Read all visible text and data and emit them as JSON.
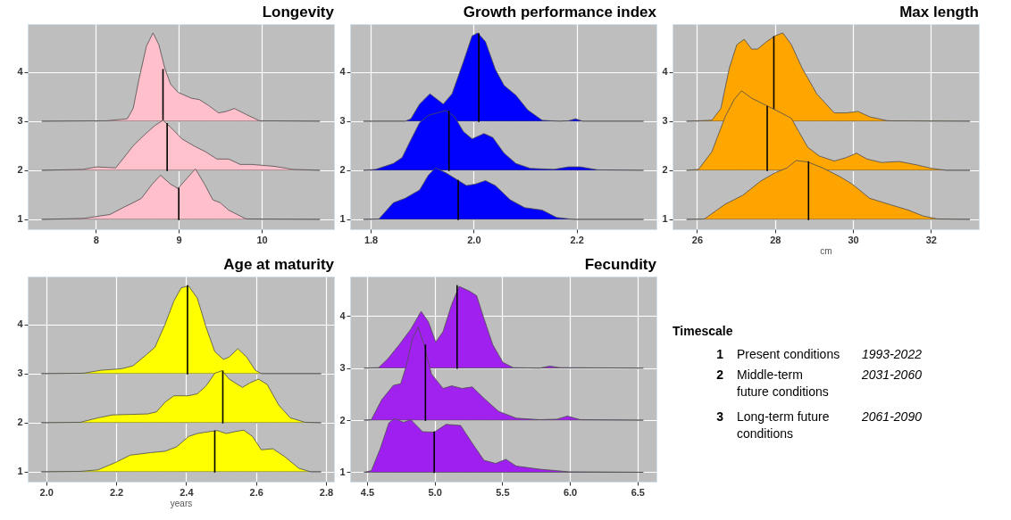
{
  "chart_data": [
    {
      "type": "area",
      "title": "Longevity",
      "xlim": [
        7.18,
        10.87
      ],
      "xticks": [
        8,
        9,
        10
      ],
      "ylim": [
        0.8,
        4.98
      ],
      "yticks": [
        1,
        2,
        3,
        4
      ],
      "grid": true,
      "series": [
        {
          "color": "#ffc0cb",
          "x": [
            7.35,
            8.13,
            8.38,
            8.45,
            8.52,
            8.61,
            8.69,
            8.76,
            8.83,
            8.9,
            8.99,
            9.15,
            9.25,
            9.36,
            9.48,
            9.57,
            9.67,
            9.81,
            9.97,
            10.7
          ],
          "values": [
            3,
            3.01,
            3.05,
            3.26,
            3.85,
            4.53,
            4.8,
            4.56,
            4.09,
            3.76,
            3.59,
            3.47,
            3.44,
            3.32,
            3.17,
            3.2,
            3.26,
            3.14,
            3.01,
            3
          ]
        },
        {
          "type": "line",
          "color": "#000000",
          "x": [
            8.81,
            8.81
          ],
          "values": [
            3.02,
            4.05
          ]
        },
        {
          "color": "#ffc1cb",
          "x": [
            7.35,
            7.85,
            8.01,
            8.24,
            8.34,
            8.45,
            8.59,
            8.71,
            8.81,
            8.9,
            9.04,
            9.18,
            9.32,
            9.46,
            9.6,
            9.74,
            9.88,
            10.16,
            10.37,
            10.7
          ],
          "values": [
            2,
            2.02,
            2.07,
            2.05,
            2.26,
            2.5,
            2.73,
            2.91,
            3.02,
            2.88,
            2.64,
            2.5,
            2.38,
            2.23,
            2.23,
            2.12,
            2.12,
            2.08,
            2.02,
            2
          ]
        },
        {
          "type": "line",
          "color": "#000000",
          "x": [
            8.86,
            8.86
          ],
          "values": [
            2,
            2.95
          ]
        },
        {
          "color": "#ffbfcb",
          "x": [
            7.35,
            7.85,
            8.17,
            8.34,
            8.45,
            8.55,
            8.68,
            8.78,
            8.9,
            8.99,
            9.1,
            9.2,
            9.31,
            9.41,
            9.5,
            9.6,
            9.81,
            10.7
          ],
          "values": [
            1,
            1.02,
            1.1,
            1.25,
            1.34,
            1.43,
            1.72,
            1.9,
            1.72,
            1.63,
            1.84,
            2.03,
            1.72,
            1.4,
            1.34,
            1.19,
            1.01,
            1
          ]
        },
        {
          "type": "line",
          "color": "#000000",
          "x": [
            9.0,
            9.0
          ],
          "values": [
            1,
            1.63
          ]
        }
      ]
    },
    {
      "type": "area",
      "title": "Growth performance index",
      "xlim": [
        1.76,
        2.355
      ],
      "xticks": [
        {
          "value": 1.8,
          "label": "1.8"
        },
        {
          "value": 2.0,
          "label": "2.0"
        },
        {
          "value": 2.2,
          "label": "2.2"
        }
      ],
      "ylim": [
        0.8,
        4.98
      ],
      "yticks": [
        1,
        2,
        3,
        4
      ],
      "grid": true,
      "series": [
        {
          "color": "#0000ff",
          "x": [
            1.786,
            1.867,
            1.878,
            1.895,
            1.915,
            1.926,
            1.941,
            1.958,
            1.98,
            1.997,
            2.008,
            2.023,
            2.042,
            2.059,
            2.082,
            2.105,
            2.133,
            2.167,
            2.184,
            2.198,
            2.212,
            2.33
          ],
          "values": [
            3,
            3,
            3.05,
            3.35,
            3.56,
            3.47,
            3.35,
            3.56,
            4.21,
            4.74,
            4.8,
            4.62,
            4.06,
            3.73,
            3.53,
            3.23,
            3.02,
            3,
            3.01,
            3.05,
            3,
            3
          ]
        },
        {
          "type": "line",
          "color": "#000000",
          "x": [
            2.01,
            2.01
          ],
          "values": [
            3,
            4.78
          ]
        },
        {
          "color": "#0101fe",
          "x": [
            1.786,
            1.81,
            1.844,
            1.861,
            1.878,
            1.895,
            1.912,
            1.946,
            1.963,
            1.98,
            1.997,
            2.02,
            2.037,
            2.059,
            2.082,
            2.11,
            2.156,
            2.184,
            2.207,
            2.241,
            2.33
          ],
          "values": [
            2,
            2.02,
            2.14,
            2.26,
            2.62,
            2.97,
            3.12,
            3.22,
            3.09,
            2.79,
            2.64,
            2.75,
            2.67,
            2.35,
            2.14,
            2.04,
            2.02,
            2.07,
            2.07,
            2.01,
            2
          ]
        },
        {
          "type": "line",
          "color": "#000000",
          "x": [
            1.952,
            1.952
          ],
          "values": [
            2,
            3.2
          ]
        },
        {
          "color": "#0000fd",
          "x": [
            1.786,
            1.816,
            1.844,
            1.867,
            1.895,
            1.912,
            1.926,
            1.946,
            1.963,
            1.986,
            2.003,
            2.023,
            2.042,
            2.071,
            2.099,
            2.133,
            2.161,
            2.195,
            2.33
          ],
          "values": [
            1,
            1.01,
            1.34,
            1.43,
            1.6,
            1.9,
            2.05,
            1.95,
            1.84,
            1.69,
            1.72,
            1.79,
            1.69,
            1.4,
            1.24,
            1.19,
            1.04,
            1,
            1
          ]
        },
        {
          "type": "line",
          "color": "#000000",
          "x": [
            1.97,
            1.97
          ],
          "values": [
            1,
            1.79
          ]
        }
      ]
    },
    {
      "type": "area",
      "title": "Max length",
      "xlabel": "cm",
      "xlim": [
        25.37,
        33.23
      ],
      "xticks": [
        26,
        28,
        30,
        32
      ],
      "ylim": [
        0.8,
        4.98
      ],
      "yticks": [
        1,
        2,
        3,
        4
      ],
      "grid": true,
      "series": [
        {
          "color": "#ffa500",
          "x": [
            25.73,
            26.38,
            26.61,
            26.83,
            27.02,
            27.21,
            27.4,
            27.55,
            27.78,
            28.0,
            28.2,
            28.42,
            28.69,
            29.07,
            29.52,
            29.83,
            30.13,
            30.43,
            30.89,
            33.0
          ],
          "values": [
            3,
            3.02,
            3.26,
            4.09,
            4.56,
            4.67,
            4.47,
            4.47,
            4.62,
            4.74,
            4.8,
            4.56,
            4.09,
            3.56,
            3.17,
            3.17,
            3.2,
            3.09,
            3.01,
            3
          ]
        },
        {
          "type": "line",
          "color": "#000000",
          "x": [
            27.97,
            27.97
          ],
          "values": [
            3.26,
            4.72
          ]
        },
        {
          "color": "#ffa601",
          "x": [
            25.73,
            26.04,
            26.38,
            26.72,
            26.95,
            27.14,
            27.4,
            27.78,
            28.16,
            28.42,
            28.61,
            28.84,
            29.14,
            29.52,
            29.83,
            30.09,
            30.36,
            30.73,
            31.19,
            31.64,
            32.02,
            32.4,
            33.0
          ],
          "values": [
            2,
            2.02,
            2.38,
            3.09,
            3.44,
            3.62,
            3.47,
            3.32,
            3.17,
            3.06,
            2.79,
            2.47,
            2.29,
            2.19,
            2.26,
            2.35,
            2.23,
            2.16,
            2.18,
            2.11,
            2.04,
            2,
            2
          ]
        },
        {
          "type": "line",
          "color": "#000000",
          "x": [
            27.8,
            27.8
          ],
          "values": [
            2,
            3.3
          ]
        },
        {
          "color": "#fea400",
          "x": [
            25.73,
            26.19,
            26.72,
            27.17,
            27.63,
            28.0,
            28.31,
            28.54,
            28.84,
            29.22,
            29.67,
            29.98,
            30.43,
            30.96,
            31.42,
            31.8,
            32.17,
            33.0
          ],
          "values": [
            1,
            1.01,
            1.31,
            1.49,
            1.78,
            1.95,
            2.05,
            2.2,
            2.17,
            2.05,
            1.87,
            1.72,
            1.43,
            1.3,
            1.19,
            1.07,
            1.01,
            1
          ]
        },
        {
          "type": "line",
          "color": "#000000",
          "x": [
            28.86,
            28.86
          ],
          "values": [
            1,
            2.17
          ]
        }
      ]
    },
    {
      "type": "area",
      "title": "Age at maturity",
      "xlabel": "years",
      "xlim": [
        1.947,
        2.823
      ],
      "xticks": [
        {
          "value": 2.0,
          "label": "2.0"
        },
        2.2,
        2.4,
        2.6,
        2.8
      ],
      "ylim": [
        0.8,
        4.98
      ],
      "yticks": [
        1,
        2,
        3,
        4
      ],
      "grid": true,
      "series": [
        {
          "color": "#ffff00",
          "x": [
            1.986,
            2.107,
            2.157,
            2.215,
            2.248,
            2.282,
            2.311,
            2.34,
            2.365,
            2.386,
            2.407,
            2.432,
            2.457,
            2.482,
            2.507,
            2.523,
            2.548,
            2.573,
            2.598,
            2.615,
            2.786
          ],
          "values": [
            3,
            3.01,
            3.07,
            3.1,
            3.16,
            3.36,
            3.54,
            4.01,
            4.48,
            4.75,
            4.79,
            4.54,
            3.95,
            3.45,
            3.29,
            3.34,
            3.51,
            3.34,
            3.07,
            3,
            3
          ]
        },
        {
          "type": "line",
          "color": "#000000",
          "x": [
            2.404,
            2.404
          ],
          "values": [
            3,
            4.79
          ]
        },
        {
          "color": "#fefe01",
          "x": [
            1.986,
            2.098,
            2.148,
            2.19,
            2.29,
            2.315,
            2.34,
            2.365,
            2.407,
            2.432,
            2.457,
            2.482,
            2.503,
            2.523,
            2.561,
            2.582,
            2.607,
            2.632,
            2.665,
            2.698,
            2.74,
            2.786
          ],
          "values": [
            2,
            2.01,
            2.1,
            2.16,
            2.18,
            2.22,
            2.42,
            2.55,
            2.55,
            2.59,
            2.75,
            3.01,
            3.06,
            2.89,
            2.72,
            2.81,
            2.89,
            2.78,
            2.36,
            2.1,
            2.01,
            2
          ]
        },
        {
          "type": "line",
          "color": "#000000",
          "x": [
            2.505,
            2.505
          ],
          "values": [
            2,
            3.05
          ]
        },
        {
          "color": "#ffff02",
          "x": [
            1.986,
            2.098,
            2.148,
            2.198,
            2.24,
            2.298,
            2.34,
            2.373,
            2.407,
            2.432,
            2.457,
            2.49,
            2.515,
            2.54,
            2.565,
            2.59,
            2.615,
            2.648,
            2.682,
            2.723,
            2.757,
            2.786
          ],
          "values": [
            1,
            1.01,
            1.04,
            1.19,
            1.34,
            1.39,
            1.42,
            1.51,
            1.72,
            1.78,
            1.81,
            1.84,
            1.78,
            1.82,
            1.85,
            1.72,
            1.45,
            1.47,
            1.31,
            1.07,
            1,
            1
          ]
        },
        {
          "type": "line",
          "color": "#000000",
          "x": [
            2.482,
            2.482
          ],
          "values": [
            1,
            1.83
          ]
        }
      ]
    },
    {
      "type": "area",
      "title": "Fecundity",
      "xlim": [
        4.375,
        6.64
      ],
      "xticks": [
        {
          "value": 4.5,
          "label": "4.5"
        },
        {
          "value": 5.0,
          "label": "5.0"
        },
        {
          "value": 5.5,
          "label": "5.5"
        },
        {
          "value": 6.0,
          "label": "6.0"
        },
        {
          "value": 6.5,
          "label": "6.5"
        }
      ],
      "ylim": [
        0.82,
        4.76
      ],
      "yticks": [
        1,
        2,
        3,
        4
      ],
      "grid": true,
      "series": [
        {
          "color": "#a020f0",
          "x": [
            4.478,
            4.586,
            4.651,
            4.738,
            4.824,
            4.9,
            4.954,
            5.008,
            5.062,
            5.127,
            5.181,
            5.257,
            5.311,
            5.365,
            5.43,
            5.505,
            5.581,
            5.776,
            5.851,
            5.927,
            6.543
          ],
          "values": [
            3,
            3.01,
            3.17,
            3.45,
            3.75,
            4.09,
            3.89,
            3.5,
            3.7,
            4.23,
            4.57,
            4.48,
            4.39,
            3.95,
            3.45,
            3.11,
            3.01,
            3,
            3.04,
            3.01,
            3
          ]
        },
        {
          "type": "line",
          "color": "#000000",
          "x": [
            5.166,
            5.166
          ],
          "values": [
            3,
            4.58
          ]
        },
        {
          "color": "#a121ef",
          "x": [
            4.478,
            4.532,
            4.608,
            4.695,
            4.749,
            4.792,
            4.835,
            4.878,
            4.922,
            4.976,
            5.062,
            5.127,
            5.203,
            5.278,
            5.365,
            5.473,
            5.603,
            5.776,
            5.905,
            5.981,
            6.078,
            6.543
          ],
          "values": [
            2,
            2.01,
            2.39,
            2.67,
            2.7,
            3.06,
            3.56,
            3.79,
            3.45,
            2.89,
            2.61,
            2.66,
            2.61,
            2.64,
            2.42,
            2.17,
            2.04,
            2.01,
            2.02,
            2.08,
            2.01,
            2
          ]
        },
        {
          "type": "line",
          "color": "#000000",
          "x": [
            4.932,
            4.932
          ],
          "values": [
            2,
            3.44
          ]
        },
        {
          "color": "#9f1ff1",
          "x": [
            4.478,
            4.532,
            4.597,
            4.662,
            4.705,
            4.77,
            4.824,
            4.911,
            4.997,
            5.084,
            5.192,
            5.278,
            5.365,
            5.451,
            5.527,
            5.603,
            5.776,
            5.992,
            6.543
          ],
          "values": [
            1,
            1.03,
            1.45,
            1.95,
            2.03,
            1.96,
            2.01,
            1.78,
            1.77,
            1.92,
            1.9,
            1.56,
            1.23,
            1.17,
            1.25,
            1.12,
            1.06,
            1.01,
            1
          ]
        },
        {
          "type": "line",
          "color": "#000000",
          "x": [
            4.997,
            4.997
          ],
          "values": [
            1,
            1.77
          ]
        }
      ]
    },
    {
      "type": "other",
      "title": "Timescale",
      "annotations": [
        "1",
        "Present conditions",
        "1993-2022",
        "2",
        "Middle-term future conditions",
        "2031-2060",
        "3",
        "Long-term future conditions",
        "2061-2090"
      ]
    }
  ]
}
